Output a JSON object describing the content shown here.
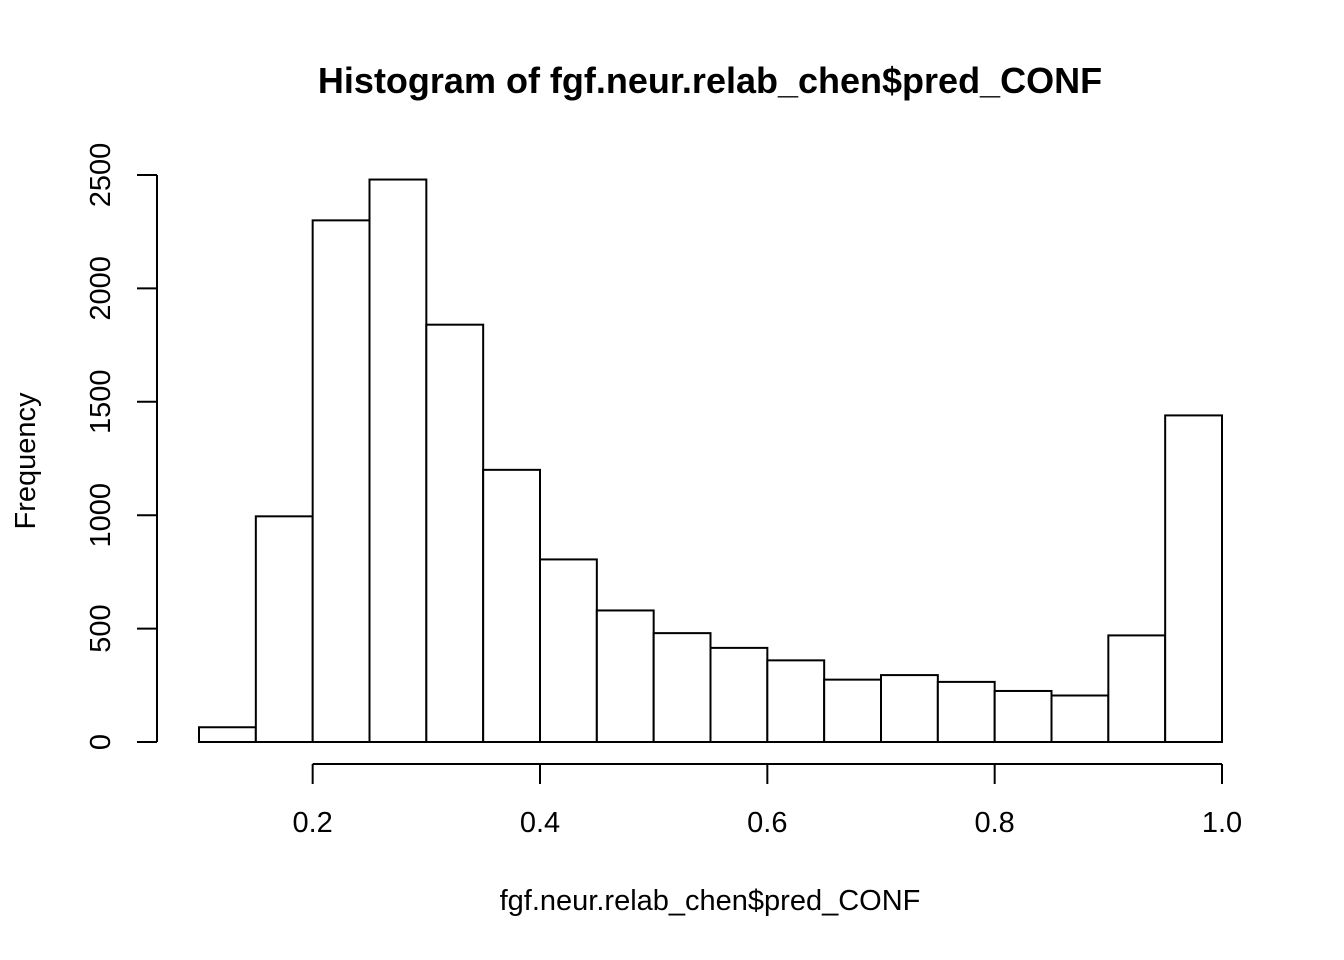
{
  "chart_data": {
    "type": "bar",
    "subtype": "histogram",
    "title": "Histogram of fgf.neur.relab_chen$pred_CONF",
    "xlabel": "fgf.neur.relab_chen$pred_CONF",
    "ylabel": "Frequency",
    "bin_edges": [
      0.1,
      0.15,
      0.2,
      0.25,
      0.3,
      0.35,
      0.4,
      0.45,
      0.5,
      0.55,
      0.6,
      0.65,
      0.7,
      0.75,
      0.8,
      0.85,
      0.9,
      0.95,
      1.0
    ],
    "values": [
      65,
      995,
      2300,
      2480,
      1840,
      1200,
      805,
      580,
      480,
      415,
      360,
      275,
      295,
      265,
      225,
      205,
      470,
      1440
    ],
    "xlim": [
      0.1,
      1.0
    ],
    "ylim": [
      0,
      2500
    ],
    "x_ticks": [
      0.2,
      0.4,
      0.6,
      0.8,
      1.0
    ],
    "x_tick_labels": [
      "0.2",
      "0.4",
      "0.6",
      "0.8",
      "1.0"
    ],
    "y_ticks": [
      0,
      500,
      1000,
      1500,
      2000,
      2500
    ],
    "y_tick_labels": [
      "0",
      "500",
      "1000",
      "1500",
      "2000",
      "2500"
    ],
    "grid": false,
    "legend": "none",
    "colors": {
      "bar_fill": "#ffffff",
      "bar_stroke": "#000000"
    }
  }
}
